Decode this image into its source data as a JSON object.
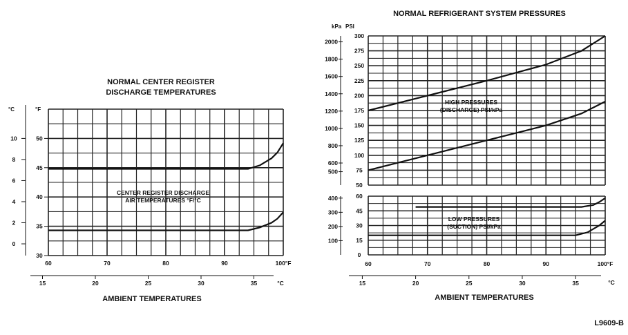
{
  "footer_code": "L9609-B",
  "chart_data": [
    {
      "type": "line",
      "title_lines": [
        "NORMAL CENTER REGISTER",
        "DISCHARGE TEMPERATURES"
      ],
      "xlabel": "AMBIENT TEMPERATURES",
      "annotation_lines": [
        "CENTER REGISTER DISCHARGE",
        "AIR TEMPERATURES °F/°C"
      ],
      "x_unit_primary": "°F",
      "x_unit_secondary": "°C",
      "y_unit_primary": "°F",
      "y_unit_secondary": "°C",
      "xlim": [
        60,
        100
      ],
      "ylim": [
        30,
        55
      ],
      "x_ticks": [
        "60",
        "70",
        "80",
        "90",
        "100°F"
      ],
      "x_ticks_secondary": [
        "15",
        "20",
        "25",
        "30",
        "35",
        "°C"
      ],
      "y_ticks_f": [
        "30",
        "35",
        "40",
        "45",
        "50"
      ],
      "y_ticks_c": [
        "0",
        "2",
        "4",
        "6",
        "8",
        "10"
      ],
      "grid": true,
      "series": [
        {
          "x": [
            60,
            94,
            96,
            98,
            99,
            100
          ],
          "y": [
            44.8,
            44.8,
            45.4,
            46.6,
            47.6,
            49.2
          ]
        },
        {
          "x": [
            60,
            94,
            96,
            98,
            99,
            100
          ],
          "y": [
            34.3,
            34.3,
            34.8,
            35.6,
            36.3,
            37.4
          ]
        }
      ]
    },
    {
      "type": "line",
      "title": "NORMAL  REFRIGERANT SYSTEM PRESSURES",
      "xlabel": "AMBIENT TEMPERATURES",
      "x_unit_primary": "°F",
      "x_unit_secondary": "°C",
      "y_unit_primary": "PSI",
      "y_unit_secondary": "kPa",
      "xlim": [
        60,
        100
      ],
      "x_ticks": [
        "60",
        "70",
        "80",
        "90",
        "100°F"
      ],
      "x_ticks_secondary": [
        "15",
        "20",
        "25",
        "30",
        "35",
        "°C"
      ],
      "grid": true,
      "panels": [
        {
          "name": "high",
          "annotation_lines": [
            "HIGH PRESSURES",
            "(DISCHARGE) PSI/kPa"
          ],
          "ylim": [
            50,
            300
          ],
          "y_ticks_psi": [
            "50",
            "75",
            "100",
            "125",
            "150",
            "175",
            "200",
            "225",
            "250",
            "275",
            "300"
          ],
          "y_ticks_kpa": [
            "500",
            "600",
            "800",
            "1000",
            "1200",
            "1400",
            "1600",
            "1800",
            "2000"
          ],
          "series": [
            {
              "x": [
                60,
                70,
                80,
                90,
                96,
                100
              ],
              "y": [
                175,
                200,
                225,
                252,
                275,
                300
              ]
            },
            {
              "x": [
                60,
                70,
                80,
                90,
                96,
                100
              ],
              "y": [
                75,
                100,
                125,
                150,
                170,
                190
              ]
            }
          ]
        },
        {
          "name": "low",
          "annotation_lines": [
            "LOW PRESSURES",
            "(SUCTION) PSI/kPa"
          ],
          "ylim": [
            0,
            60
          ],
          "y_ticks_psi": [
            "0",
            "15",
            "30",
            "45",
            "60"
          ],
          "y_ticks_kpa": [
            "100",
            "200",
            "300",
            "400"
          ],
          "series": [
            {
              "x": [
                68,
                96,
                98,
                99,
                100
              ],
              "y": [
                49,
                49,
                51,
                54,
                58
              ]
            },
            {
              "x": [
                60,
                95,
                97,
                99,
                100
              ],
              "y": [
                20,
                20,
                23,
                30,
                35
              ]
            }
          ]
        }
      ]
    }
  ]
}
